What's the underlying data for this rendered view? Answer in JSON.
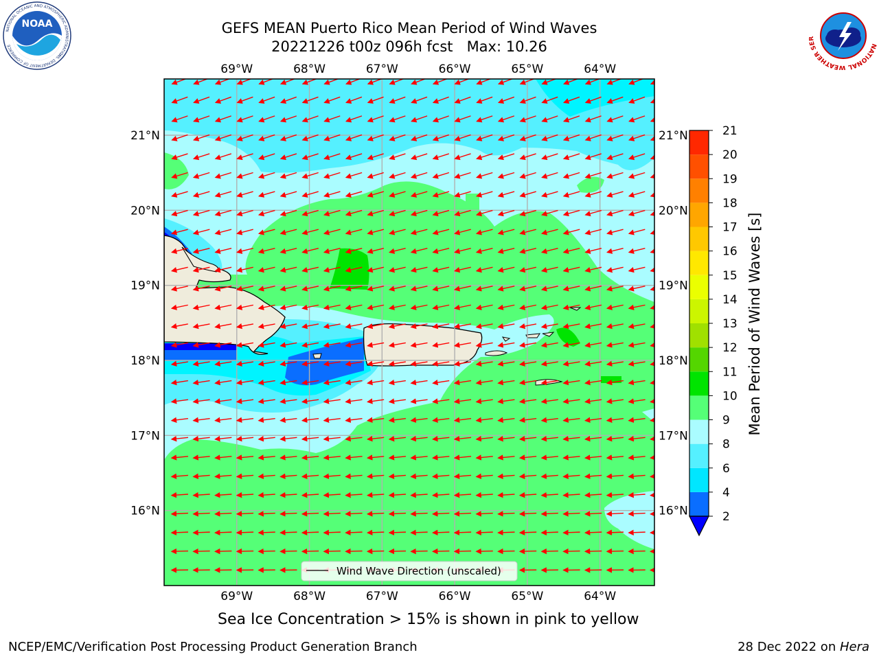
{
  "title": {
    "line1": "GEFS MEAN Puerto Rico Mean Period of Wind Waves",
    "line2": "20221226 t00z 096h fcst   Max: 10.26"
  },
  "map": {
    "lon_labels": [
      "69°W",
      "68°W",
      "67°W",
      "66°W",
      "65°W",
      "64°W"
    ],
    "lat_labels": [
      "21°N",
      "20°N",
      "19°N",
      "18°N",
      "17°N",
      "16°N"
    ],
    "legend_label": "Wind Wave Direction (unscaled)",
    "vector_color": "#ff0000",
    "land_color": "#efecdc"
  },
  "colorbar": {
    "label": "Mean Period of Wind Waves [s]",
    "ticks": [
      "2",
      "4",
      "6",
      "8",
      "9",
      "10",
      "11",
      "12",
      "13",
      "14",
      "15",
      "16",
      "17",
      "18",
      "19",
      "20",
      "21"
    ],
    "colors": [
      "#0000ff",
      "#0a6eff",
      "#00e6ff",
      "#55f0ff",
      "#aafcff",
      "#55ff77",
      "#00e400",
      "#54d600",
      "#a0e000",
      "#ccf500",
      "#ebff00",
      "#ffe800",
      "#ffc800",
      "#ffa600",
      "#ff8000",
      "#ff5000",
      "#ff2800",
      "#ff0000"
    ]
  },
  "subtitle": "Sea Ice Concentration > 15% is shown in pink to yellow",
  "footer": {
    "left": "NCEP/EMC/Verification Post Processing Product Generation Branch",
    "date": "28 Dec 2022 on ",
    "host": "Hera"
  },
  "logos": {
    "noaa_text": "NOAA",
    "noaa_ring": "NATIONAL OCEANIC AND ATMOSPHERIC ADMINISTRATION",
    "noaa_ring2": "U.S. DEPARTMENT OF COMMERCE",
    "nws_ring": "NATIONAL WEATHER SERVICE"
  }
}
